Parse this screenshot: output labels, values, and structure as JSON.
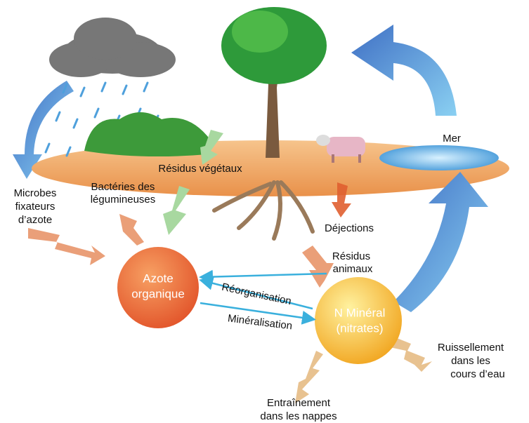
{
  "nodes": [
    {
      "lines": [
        "Mer"
      ]
    },
    {
      "lines": [
        "Résidus végétaux"
      ]
    },
    {
      "lines": [
        "Microbes",
        "fixateurs",
        "d’azote"
      ]
    },
    {
      "lines": [
        "Bactéries des",
        "légumineuses"
      ]
    },
    {
      "lines": [
        "Déjections"
      ]
    },
    {
      "lines": [
        "Résidus",
        "animaux"
      ]
    },
    {
      "lines": [
        "Azote",
        "organique"
      ]
    },
    {
      "lines": [
        "Réorganisation"
      ]
    },
    {
      "lines": [
        "Minéralisation"
      ]
    },
    {
      "lines": [
        "N Minéral",
        "(nitrates)"
      ]
    },
    {
      "lines": [
        "Ruissellement",
        "dans les",
        "cours d’eau"
      ]
    },
    {
      "lines": [
        "Entraînement",
        "dans les nappes"
      ]
    }
  ]
}
